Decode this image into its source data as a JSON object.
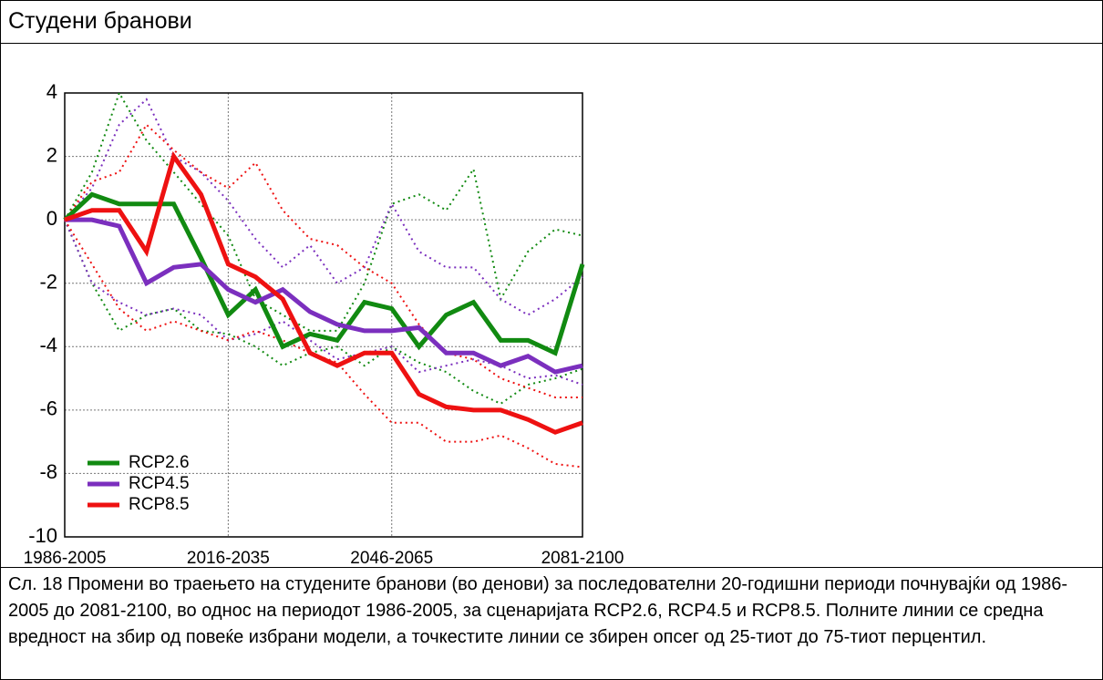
{
  "header": {
    "title": "Студени бранови"
  },
  "chart_data": {
    "type": "line",
    "x": [
      1986,
      1991,
      1996,
      2001,
      2006,
      2011,
      2016,
      2021,
      2026,
      2031,
      2036,
      2041,
      2046,
      2051,
      2056,
      2061,
      2066,
      2071,
      2076,
      2081
    ],
    "xlim": [
      1986,
      2081
    ],
    "xticks": [
      {
        "value": 1986,
        "label": "1986-2005"
      },
      {
        "value": 2016,
        "label": "2016-2035"
      },
      {
        "value": 2046,
        "label": "2046-2065"
      },
      {
        "value": 2081,
        "label": "2081-2100"
      }
    ],
    "ylim": [
      -10,
      4
    ],
    "yticks": [
      -10,
      -8,
      -6,
      -4,
      -2,
      0,
      2,
      4
    ],
    "grid": true,
    "legend": "lower-left",
    "series": [
      {
        "name": "RCP2.6",
        "color": "#118a11",
        "values": [
          0,
          0.8,
          0.5,
          0.5,
          0.5,
          -1.2,
          -3.0,
          -2.2,
          -4.0,
          -3.6,
          -3.8,
          -2.6,
          -2.8,
          -4.0,
          -3.0,
          -2.6,
          -3.8,
          -3.8,
          -4.2,
          -1.4
        ],
        "upper": [
          0,
          1.5,
          4.0,
          2.5,
          1.5,
          0.5,
          -0.5,
          -2.5,
          -3.0,
          -3.5,
          -3.5,
          -2.0,
          0.5,
          0.8,
          0.3,
          1.6,
          -2.5,
          -1.0,
          -0.3,
          -0.5
        ],
        "lower": [
          0,
          -2.0,
          -3.5,
          -3.0,
          -2.8,
          -3.5,
          -3.6,
          -4.0,
          -4.6,
          -4.2,
          -4.0,
          -4.6,
          -4.0,
          -4.5,
          -4.8,
          -5.4,
          -5.8,
          -5.2,
          -5.0,
          -4.7
        ]
      },
      {
        "name": "RCP4.5",
        "color": "#7b2fbe",
        "values": [
          0,
          0,
          -0.2,
          -2.0,
          -1.5,
          -1.4,
          -2.2,
          -2.6,
          -2.2,
          -2.9,
          -3.3,
          -3.5,
          -3.5,
          -3.4,
          -4.2,
          -4.2,
          -4.6,
          -4.3,
          -4.8,
          -4.6
        ],
        "upper": [
          0,
          1.0,
          3.0,
          3.8,
          2.0,
          1.5,
          0.6,
          -0.6,
          -1.5,
          -0.8,
          -2.0,
          -1.5,
          0.5,
          -1.0,
          -1.5,
          -1.5,
          -2.5,
          -3.0,
          -2.5,
          -1.8
        ],
        "lower": [
          0,
          -2.0,
          -2.6,
          -3.0,
          -2.8,
          -3.0,
          -3.8,
          -3.6,
          -3.2,
          -3.8,
          -4.4,
          -4.2,
          -4.0,
          -4.8,
          -4.6,
          -4.4,
          -4.6,
          -5.0,
          -4.9,
          -5.2
        ]
      },
      {
        "name": "RCP8.5",
        "color": "#ee1111",
        "values": [
          0,
          0.3,
          0.3,
          -1.0,
          2.0,
          0.8,
          -1.4,
          -1.8,
          -2.5,
          -4.2,
          -4.6,
          -4.2,
          -4.2,
          -5.5,
          -5.9,
          -6.0,
          -6.0,
          -6.3,
          -6.7,
          -6.4
        ],
        "upper": [
          0,
          1.2,
          1.5,
          3.0,
          2.2,
          1.5,
          1.0,
          1.8,
          0.3,
          -0.6,
          -0.8,
          -1.5,
          -2.0,
          -3.3,
          -4.2,
          -4.4,
          -5.0,
          -5.3,
          -5.6,
          -5.6
        ],
        "lower": [
          0,
          -1.4,
          -2.8,
          -3.5,
          -3.2,
          -3.5,
          -3.8,
          -3.5,
          -3.8,
          -4.2,
          -4.5,
          -5.5,
          -6.4,
          -6.4,
          -7.0,
          -7.0,
          -6.8,
          -7.2,
          -7.7,
          -7.8
        ]
      }
    ]
  },
  "caption": "Сл. 18 Промени во траењето на студените бранови (во денови) за последователни 20-годишни периоди почнувајќи од 1986-2005 до 2081-2100, во однос на периодот 1986-2005, за сценаријата RCP2.6, RCP4.5 и RCP8.5. Полните линии се средна вредност на збир од повеќе избрани модели, а точкестите линии се збирен опсег од 25-тиот до 75-тиот перцентил."
}
